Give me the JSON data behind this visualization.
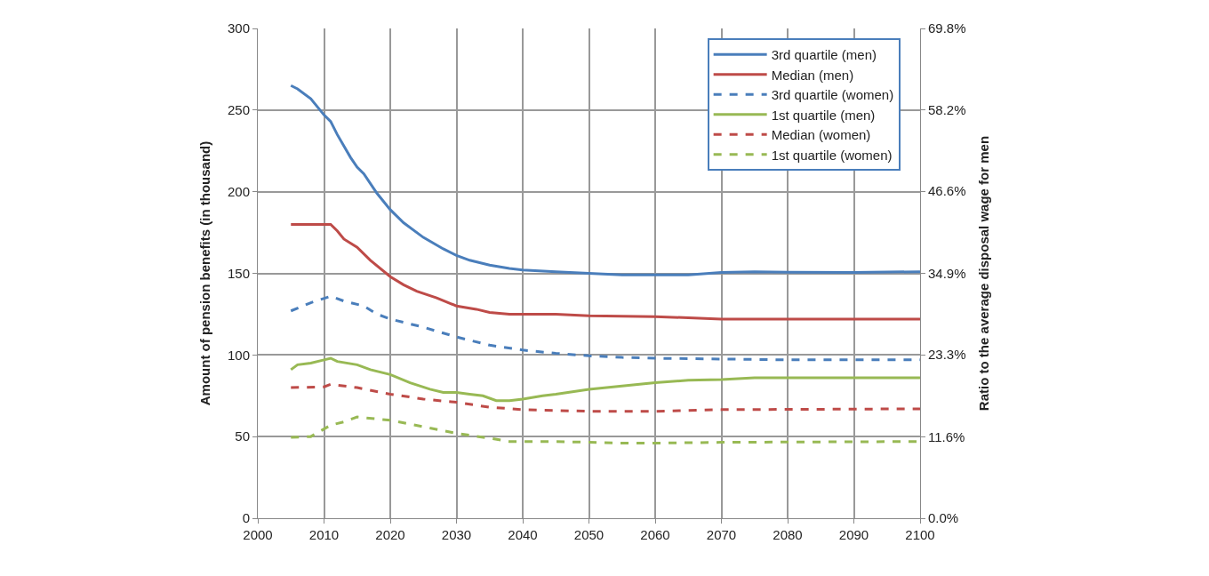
{
  "chart_data": {
    "type": "line",
    "xlabel": null,
    "ylabel": "Amount of pension benefits (in thousand)",
    "y2label": "Ratio to the average disposal wage for men",
    "xlim": [
      2000,
      2100
    ],
    "xticks": [
      2000,
      2010,
      2020,
      2030,
      2040,
      2050,
      2060,
      2070,
      2080,
      2090,
      2100
    ],
    "ylim": [
      0,
      300
    ],
    "yticks": [
      0,
      50,
      100,
      150,
      200,
      250,
      300
    ],
    "y2lim": [
      0,
      69.8
    ],
    "y2ticks": [
      {
        "value": 0,
        "label": "0.0%"
      },
      {
        "value": 11.6,
        "label": "11.6%"
      },
      {
        "value": 23.3,
        "label": "23.3%"
      },
      {
        "value": 34.9,
        "label": "34.9%"
      },
      {
        "value": 46.6,
        "label": "46.6%"
      },
      {
        "value": 58.2,
        "label": "58.2%"
      },
      {
        "value": 69.8,
        "label": "69.8%"
      }
    ],
    "grid": true,
    "legend": "top right",
    "marker": "none",
    "series": [
      {
        "name": "3rd quartile (men)",
        "color": "#4a7ebb",
        "line_style": "solid",
        "x": [
          2005,
          2006,
          2008,
          2010,
          2011,
          2012,
          2014,
          2015,
          2016,
          2018,
          2020,
          2022,
          2025,
          2028,
          2030,
          2032,
          2035,
          2038,
          2040,
          2045,
          2050,
          2055,
          2060,
          2065,
          2070,
          2075,
          2080,
          2090,
          2100
        ],
        "values": [
          265,
          263,
          257,
          247,
          243,
          235,
          221,
          215,
          211,
          199,
          189,
          181,
          172,
          165,
          161,
          158,
          155,
          153,
          152,
          151,
          150,
          149,
          149,
          149,
          150.5,
          151,
          150.7,
          150.5,
          151
        ]
      },
      {
        "name": "Median (men)",
        "color": "#be4b48",
        "line_style": "solid",
        "x": [
          2005,
          2011,
          2012,
          2013,
          2015,
          2017,
          2020,
          2022,
          2024,
          2027,
          2030,
          2033,
          2035,
          2038,
          2040,
          2045,
          2050,
          2060,
          2070,
          2080,
          2100
        ],
        "values": [
          180,
          180,
          176,
          171,
          166,
          158,
          148,
          143,
          139,
          135,
          130,
          128,
          126,
          125,
          125,
          125,
          124,
          123.5,
          122,
          122,
          122
        ]
      },
      {
        "name": "3rd quartile (women)",
        "color": "#4a7ebb",
        "line_style": "dashed",
        "x": [
          2005,
          2008,
          2011,
          2013,
          2016,
          2018,
          2020,
          2025,
          2030,
          2035,
          2040,
          2045,
          2050,
          2055,
          2060,
          2070,
          2080,
          2090,
          2100
        ],
        "values": [
          127,
          132,
          136,
          133,
          130,
          125,
          122,
          117,
          111,
          106,
          103,
          101,
          99.5,
          98.5,
          98,
          97.5,
          97,
          97,
          97
        ]
      },
      {
        "name": "1st quartile (men)",
        "color": "#98b954",
        "line_style": "solid",
        "x": [
          2005,
          2006,
          2008,
          2010,
          2011,
          2012,
          2015,
          2017,
          2020,
          2023,
          2026,
          2028,
          2030,
          2032,
          2034,
          2036,
          2038,
          2040,
          2043,
          2045,
          2050,
          2055,
          2060,
          2065,
          2070,
          2075,
          2100
        ],
        "values": [
          91,
          94,
          95,
          97,
          98,
          96,
          94,
          91,
          88,
          83,
          79,
          77,
          77,
          76,
          75,
          72,
          72,
          73,
          75,
          76,
          79,
          81,
          83,
          84.5,
          85,
          86,
          86
        ]
      },
      {
        "name": "Median (women)",
        "color": "#be4b48",
        "line_style": "dashed",
        "x": [
          2005,
          2010,
          2011,
          2015,
          2020,
          2025,
          2030,
          2035,
          2040,
          2050,
          2060,
          2070,
          2100
        ],
        "values": [
          80,
          80.5,
          82,
          80,
          76,
          73,
          71,
          68,
          66.5,
          65.5,
          65.5,
          66.5,
          67
        ]
      },
      {
        "name": "1st quartile (women)",
        "color": "#98b954",
        "line_style": "dashed",
        "x": [
          2005,
          2008,
          2011,
          2013,
          2015,
          2020,
          2025,
          2030,
          2035,
          2038,
          2045,
          2050,
          2055,
          2060,
          2070,
          2100
        ],
        "values": [
          49.5,
          50,
          57,
          59,
          62,
          60,
          56,
          52,
          49,
          47,
          47,
          46.5,
          46,
          46,
          46.5,
          47
        ]
      }
    ]
  }
}
